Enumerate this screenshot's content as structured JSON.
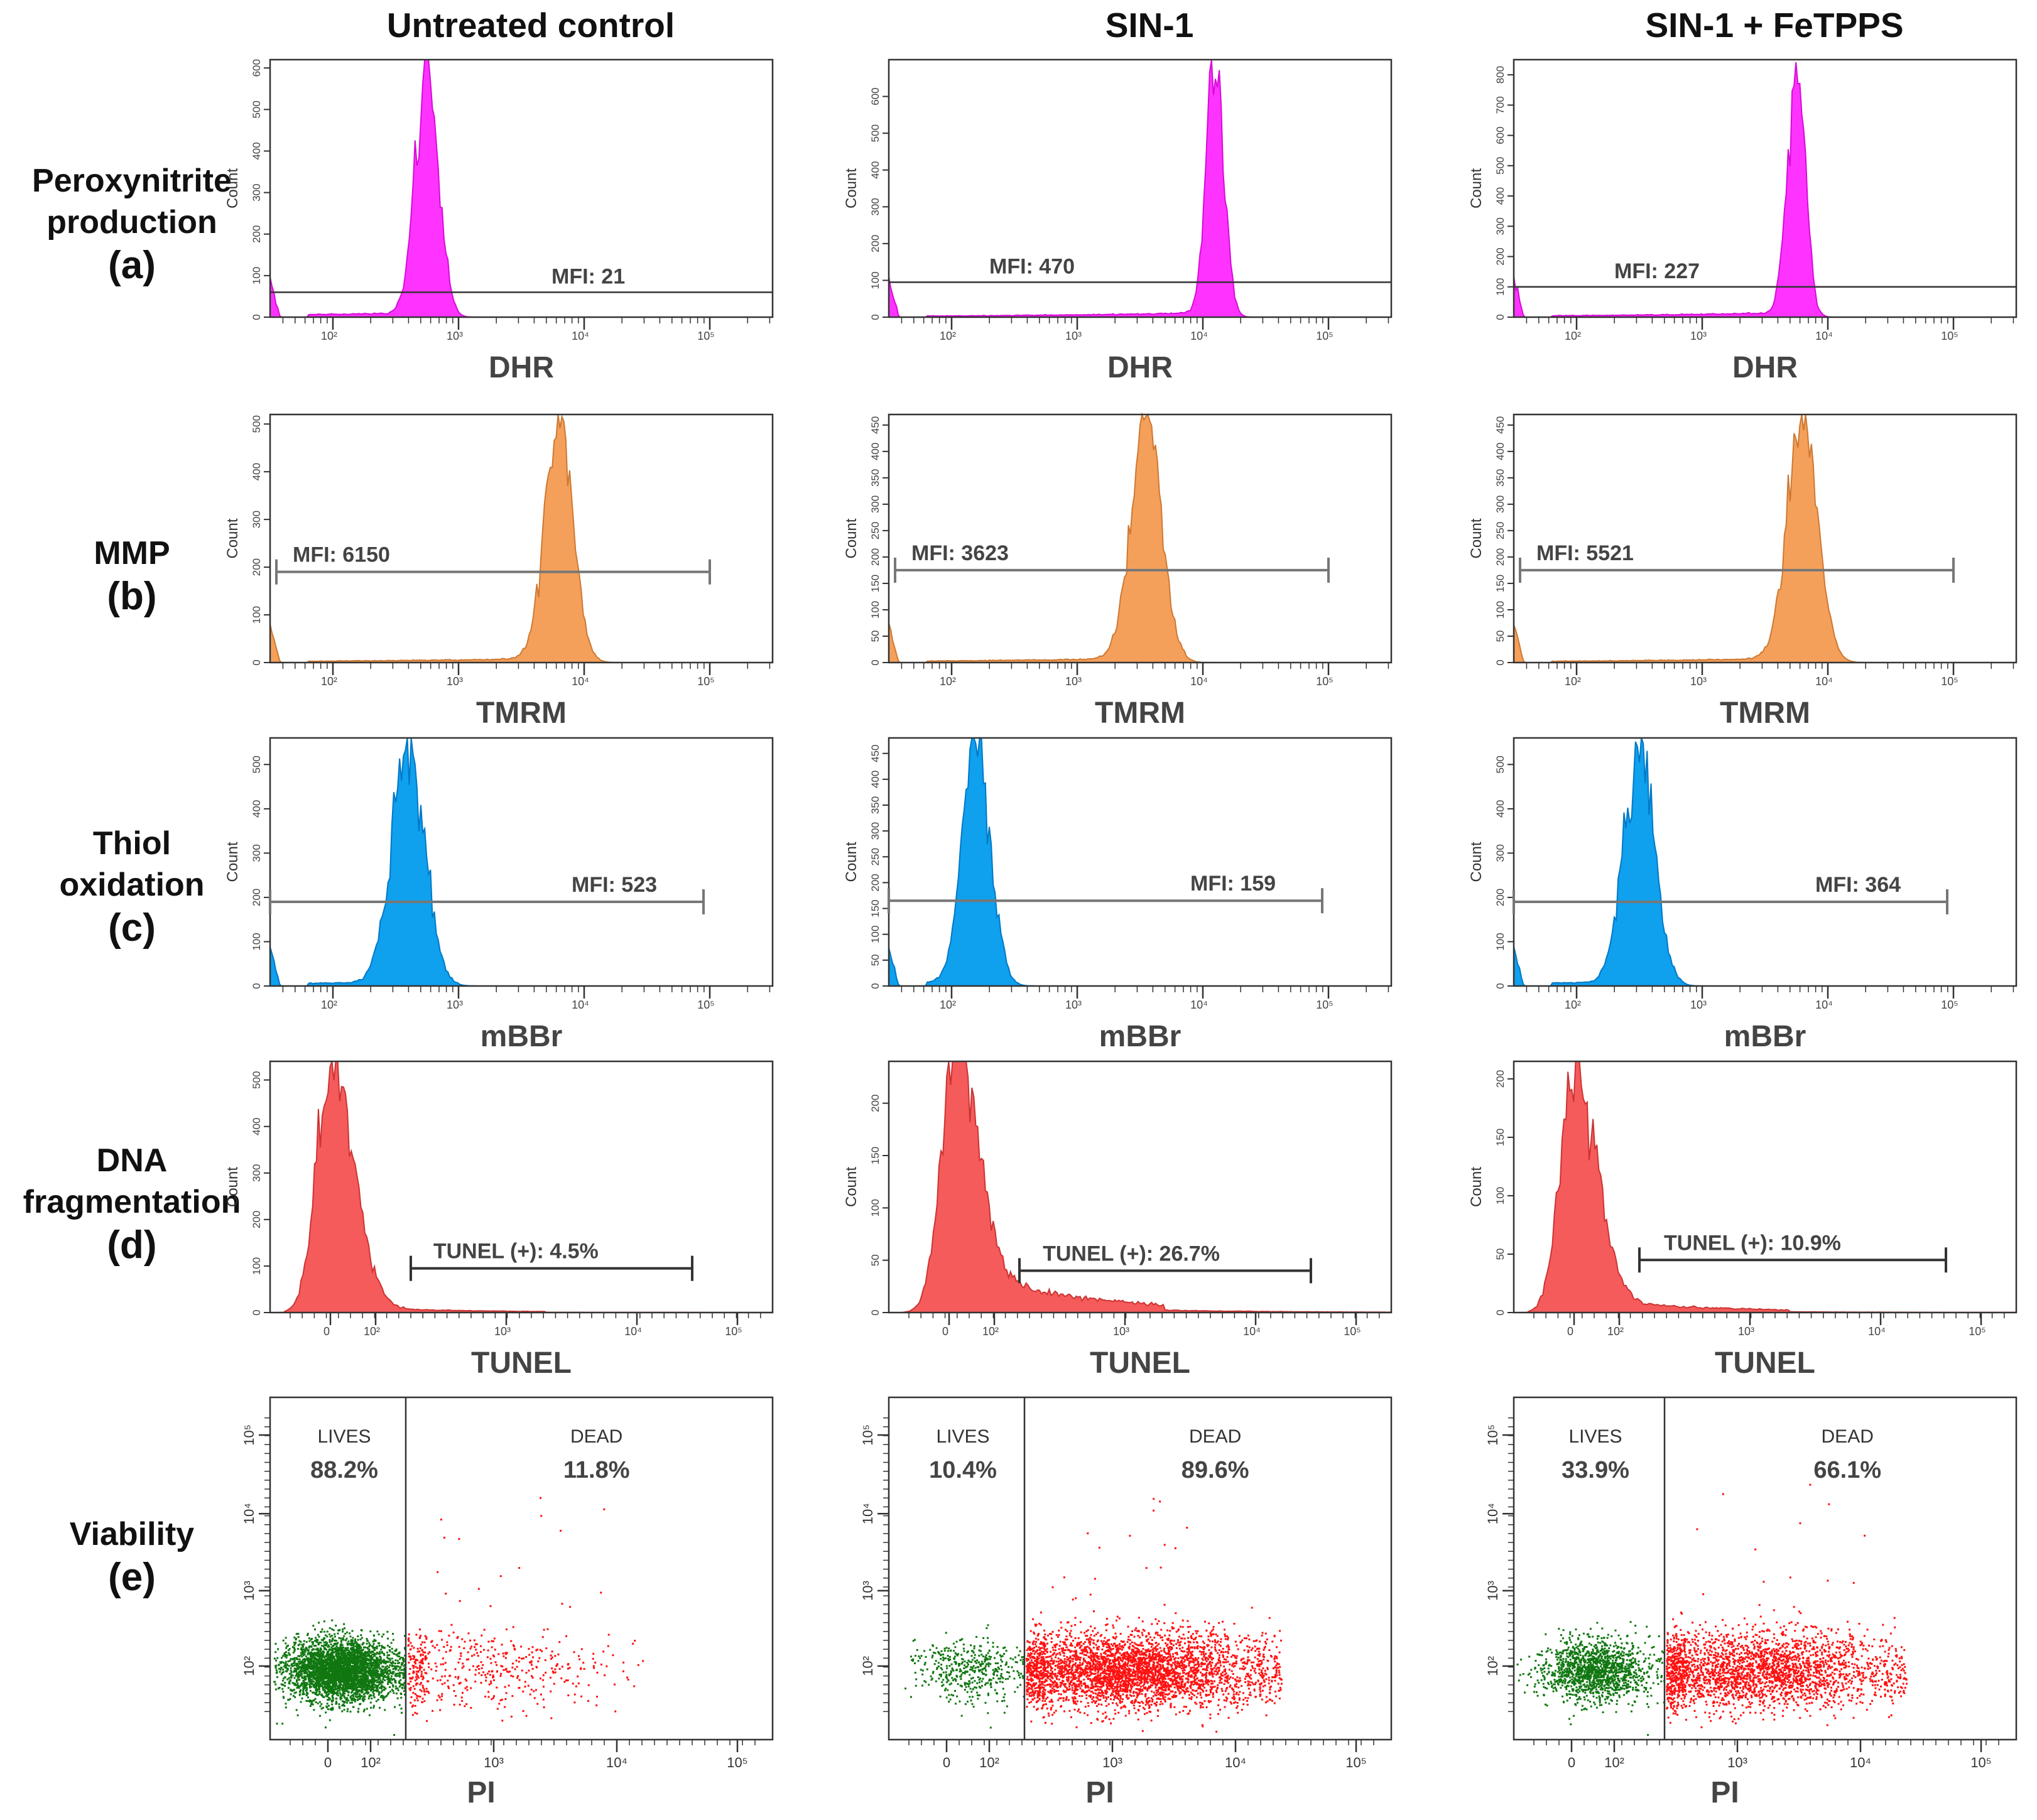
{
  "figure": {
    "columns": [
      "Untreated control",
      "SIN-1",
      "SIN-1 + FeTPPS"
    ],
    "rows": [
      {
        "name": "Peroxynitrite production",
        "lines": [
          "Peroxynitrite",
          "production"
        ],
        "letter": "(a)"
      },
      {
        "name": "MMP",
        "lines": [
          "MMP"
        ],
        "letter": "(b)"
      },
      {
        "name": "Thiol oxidation",
        "lines": [
          "Thiol",
          "oxidation"
        ],
        "letter": "(c)"
      },
      {
        "name": "DNA fragmentation",
        "lines": [
          "DNA",
          "fragmentation"
        ],
        "letter": "(d)"
      },
      {
        "name": "Viability",
        "lines": [
          "Viability"
        ],
        "letter": "(e)"
      }
    ]
  },
  "chart_data": [
    {
      "type": "area",
      "row": "a",
      "column": "Untreated control",
      "xlabel": "DHR",
      "ylabel": "Count",
      "color": "#ff33ff",
      "xscale": "log",
      "xlim": [
        30,
        300000
      ],
      "ylim": [
        0,
        620
      ],
      "x_ticks": [
        "10²",
        "10³",
        "10⁴",
        "10⁵"
      ],
      "y_ticks": [
        0,
        100,
        200,
        300,
        400,
        500,
        600
      ],
      "peak_log10": 2.75,
      "peak_count": 600,
      "peak_width": 0.09,
      "gate_type": "line",
      "gate_level": 60,
      "annotation": "MFI: 21"
    },
    {
      "type": "area",
      "row": "a",
      "column": "SIN-1",
      "xlabel": "DHR",
      "ylabel": "Count",
      "color": "#ff33ff",
      "xscale": "log",
      "xlim": [
        30,
        300000
      ],
      "ylim": [
        0,
        700
      ],
      "x_ticks": [
        "10²",
        "10³",
        "10⁴",
        "10⁵"
      ],
      "y_ticks": [
        0,
        100,
        200,
        300,
        400,
        500,
        600
      ],
      "peak_log10": 4.1,
      "peak_count": 690,
      "peak_width": 0.07,
      "gate_type": "line",
      "gate_level": 95,
      "annotation": "MFI: 470"
    },
    {
      "type": "area",
      "row": "a",
      "column": "SIN-1 + FeTPPS",
      "xlabel": "DHR",
      "ylabel": "Count",
      "color": "#ff33ff",
      "xscale": "log",
      "xlim": [
        30,
        300000
      ],
      "ylim": [
        0,
        850
      ],
      "x_ticks": [
        "10²",
        "10³",
        "10⁴",
        "10⁵"
      ],
      "y_ticks": [
        0,
        100,
        200,
        300,
        400,
        500,
        600,
        700,
        800
      ],
      "peak_log10": 3.75,
      "peak_count": 840,
      "peak_width": 0.07,
      "gate_type": "line",
      "gate_level": 100,
      "annotation": "MFI: 227"
    },
    {
      "type": "area",
      "row": "b",
      "column": "Untreated control",
      "xlabel": "TMRM",
      "ylabel": "Count",
      "color": "#f5a05a",
      "xscale": "log",
      "xlim": [
        30,
        300000
      ],
      "ylim": [
        0,
        520
      ],
      "x_ticks": [
        "10²",
        "10³",
        "10⁴",
        "10⁵"
      ],
      "y_ticks": [
        0,
        100,
        200,
        300,
        400,
        500
      ],
      "peak_log10": 3.8,
      "peak_count": 510,
      "peak_width": 0.11,
      "gate_type": "bracket",
      "gate_level": 190,
      "gate_range": [
        1.55,
        5.0
      ],
      "annotation": "MFI: 6150"
    },
    {
      "type": "area",
      "row": "b",
      "column": "SIN-1",
      "xlabel": "TMRM",
      "ylabel": "Count",
      "color": "#f5a05a",
      "xscale": "log",
      "xlim": [
        30,
        300000
      ],
      "ylim": [
        0,
        470
      ],
      "x_ticks": [
        "10²",
        "10³",
        "10⁴",
        "10⁵"
      ],
      "y_ticks": [
        0,
        50,
        100,
        150,
        200,
        250,
        300,
        350,
        400,
        450
      ],
      "peak_log10": 3.55,
      "peak_count": 460,
      "peak_width": 0.12,
      "gate_type": "bracket",
      "gate_level": 175,
      "gate_range": [
        1.55,
        5.0
      ],
      "annotation": "MFI: 3623"
    },
    {
      "type": "area",
      "row": "b",
      "column": "SIN-1 + FeTPPS",
      "xlabel": "TMRM",
      "ylabel": "Count",
      "color": "#f5a05a",
      "xscale": "log",
      "xlim": [
        30,
        300000
      ],
      "ylim": [
        0,
        470
      ],
      "x_ticks": [
        "10²",
        "10³",
        "10⁴",
        "10⁵"
      ],
      "y_ticks": [
        0,
        50,
        100,
        150,
        200,
        250,
        300,
        350,
        400,
        450
      ],
      "peak_log10": 3.8,
      "peak_count": 460,
      "peak_width": 0.12,
      "gate_type": "bracket",
      "gate_level": 175,
      "gate_range": [
        1.55,
        5.0
      ],
      "annotation": "MFI: 5521"
    },
    {
      "type": "area",
      "row": "c",
      "column": "Untreated control",
      "xlabel": "mBBr",
      "ylabel": "Count",
      "color": "#0fa0ee",
      "xscale": "log",
      "xlim": [
        30,
        300000
      ],
      "ylim": [
        0,
        560
      ],
      "x_ticks": [
        "10²",
        "10³",
        "10⁴",
        "10⁵"
      ],
      "y_ticks": [
        0,
        100,
        200,
        300,
        400,
        500
      ],
      "peak_log10": 2.6,
      "peak_count": 545,
      "peak_width": 0.13,
      "gate_type": "bracket",
      "gate_level": 190,
      "gate_range": [
        1.5,
        4.95
      ],
      "annotation": "MFI: 523"
    },
    {
      "type": "area",
      "row": "c",
      "column": "SIN-1",
      "xlabel": "mBBr",
      "ylabel": "Count",
      "color": "#0fa0ee",
      "xscale": "log",
      "xlim": [
        30,
        300000
      ],
      "ylim": [
        0,
        480
      ],
      "x_ticks": [
        "10²",
        "10³",
        "10⁴",
        "10⁵"
      ],
      "y_ticks": [
        0,
        50,
        100,
        150,
        200,
        250,
        300,
        350,
        400,
        450
      ],
      "peak_log10": 2.2,
      "peak_count": 470,
      "peak_width": 0.11,
      "gate_type": "bracket",
      "gate_level": 165,
      "gate_range": [
        1.5,
        4.95
      ],
      "annotation": "MFI: 159"
    },
    {
      "type": "area",
      "row": "c",
      "column": "SIN-1 + FeTPPS",
      "xlabel": "mBBr",
      "ylabel": "Count",
      "color": "#0fa0ee",
      "xscale": "log",
      "xlim": [
        30,
        300000
      ],
      "ylim": [
        0,
        560
      ],
      "x_ticks": [
        "10²",
        "10³",
        "10⁴",
        "10⁵"
      ],
      "y_ticks": [
        0,
        100,
        200,
        300,
        400,
        500
      ],
      "peak_log10": 2.5,
      "peak_count": 545,
      "peak_width": 0.12,
      "gate_type": "bracket",
      "gate_level": 190,
      "gate_range": [
        1.5,
        4.95
      ],
      "annotation": "MFI: 364"
    },
    {
      "type": "area",
      "row": "d",
      "column": "Untreated control",
      "xlabel": "TUNEL",
      "ylabel": "Count",
      "color": "#f55b5b",
      "xscale": "biexponential",
      "ylim": [
        0,
        540
      ],
      "x_ticks": [
        "0",
        "10²",
        "10³",
        "10⁴",
        "10⁵"
      ],
      "y_ticks": [
        0,
        100,
        200,
        300,
        400,
        500
      ],
      "peak_pos": 0.12,
      "peak_count": 530,
      "tail_level": 12,
      "gate_type": "bracket",
      "gate_level": 95,
      "gate_range": [
        0.28,
        0.84
      ],
      "annotation": "TUNEL (+): 4.5%"
    },
    {
      "type": "area",
      "row": "d",
      "column": "SIN-1",
      "xlabel": "TUNEL",
      "ylabel": "Count",
      "color": "#f55b5b",
      "xscale": "biexponential",
      "ylim": [
        0,
        240
      ],
      "x_ticks": [
        "0",
        "10²",
        "10³",
        "10⁴",
        "10⁵"
      ],
      "y_ticks": [
        0,
        50,
        100,
        150,
        200
      ],
      "peak_pos": 0.13,
      "peak_count": 235,
      "tail_level": 40,
      "gate_type": "bracket",
      "gate_level": 40,
      "gate_range": [
        0.26,
        0.84
      ],
      "annotation": "TUNEL (+): 26.7%"
    },
    {
      "type": "area",
      "row": "d",
      "column": "SIN-1 + FeTPPS",
      "xlabel": "TUNEL",
      "ylabel": "Count",
      "color": "#f55b5b",
      "xscale": "biexponential",
      "ylim": [
        0,
        215
      ],
      "x_ticks": [
        "0",
        "10²",
        "10³",
        "10⁴",
        "10⁵"
      ],
      "y_ticks": [
        0,
        50,
        100,
        150,
        200
      ],
      "peak_pos": 0.12,
      "peak_count": 205,
      "tail_level": 12,
      "gate_type": "bracket",
      "gate_level": 45,
      "gate_range": [
        0.25,
        0.86
      ],
      "annotation": "TUNEL (+): 10.9%"
    },
    {
      "type": "scatter",
      "row": "e",
      "column": "Untreated control",
      "xlabel": "PI",
      "y_ticks": [
        "10²",
        "10³",
        "10⁴",
        "10⁵"
      ],
      "x_ticks": [
        "0",
        "10²",
        "10³",
        "10⁴",
        "10⁵"
      ],
      "gate_divider": 0.27,
      "lives_label": "LIVES",
      "lives_value": "88.2%",
      "dead_label": "DEAD",
      "dead_value": "11.8%",
      "live_fraction": 0.882,
      "dead_fraction": 0.118,
      "live_center": 0.14,
      "dead_center": 0.4,
      "dead_spread": 0.14
    },
    {
      "type": "scatter",
      "row": "e",
      "column": "SIN-1",
      "xlabel": "PI",
      "y_ticks": [
        "10²",
        "10³",
        "10⁴",
        "10⁵"
      ],
      "x_ticks": [
        "0",
        "10²",
        "10³",
        "10⁴",
        "10⁵"
      ],
      "gate_divider": 0.27,
      "lives_label": "LIVES",
      "lives_value": "10.4%",
      "dead_label": "DEAD",
      "dead_value": "89.6%",
      "live_fraction": 0.104,
      "dead_fraction": 0.896,
      "live_center": 0.16,
      "dead_center": 0.48,
      "dead_spread": 0.14
    },
    {
      "type": "scatter",
      "row": "e",
      "column": "SIN-1 + FeTPPS",
      "xlabel": "PI",
      "y_ticks": [
        "10²",
        "10³",
        "10⁴",
        "10⁵"
      ],
      "x_ticks": [
        "0",
        "10²",
        "10³",
        "10⁴",
        "10⁵"
      ],
      "gate_divider": 0.3,
      "lives_label": "LIVES",
      "lives_value": "33.9%",
      "dead_label": "DEAD",
      "dead_value": "66.1%",
      "live_fraction": 0.339,
      "dead_fraction": 0.661,
      "live_center": 0.16,
      "dead_center": 0.48,
      "dead_spread": 0.14
    }
  ]
}
